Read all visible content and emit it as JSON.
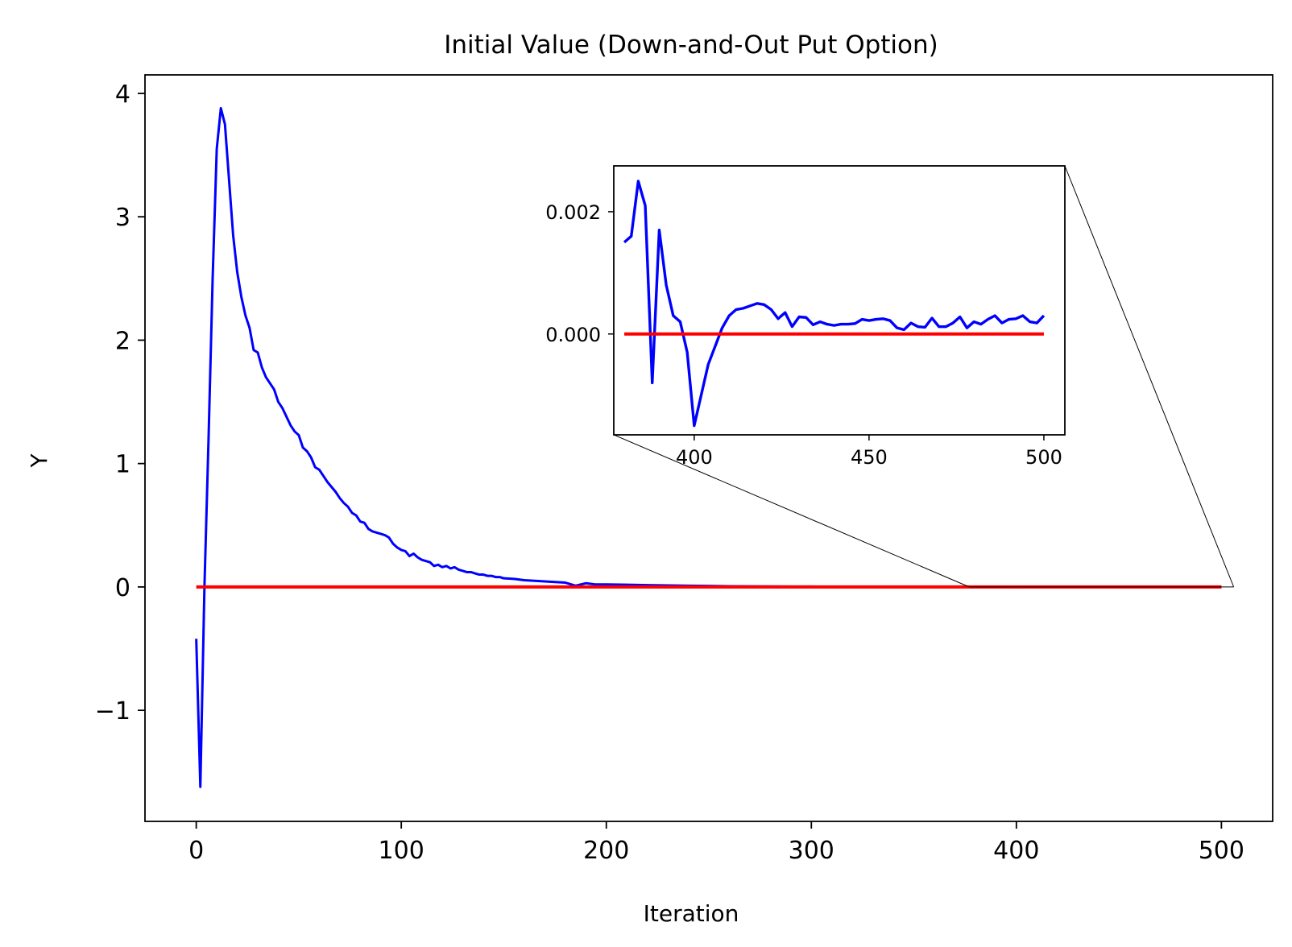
{
  "chart_data": {
    "type": "line",
    "title": "Initial Value (Down-and-Out Put Option)",
    "xlabel": "Iteration",
    "ylabel": "Y",
    "xlim": [
      -25,
      525
    ],
    "ylim": [
      -1.9,
      4.15
    ],
    "x_ticks": [
      0,
      100,
      200,
      300,
      400,
      500
    ],
    "x_tick_labels": [
      "0",
      "100",
      "200",
      "300",
      "400",
      "500"
    ],
    "y_ticks": [
      -1,
      0,
      1,
      2,
      3,
      4
    ],
    "y_tick_labels": [
      "−1",
      "0",
      "1",
      "2",
      "3",
      "4"
    ],
    "grid": false,
    "series": [
      {
        "color": "#0000ff",
        "x": [
          0,
          2,
          4,
          6,
          8,
          10,
          12,
          14,
          16,
          18,
          20,
          22,
          24,
          26,
          28,
          30,
          32,
          34,
          36,
          38,
          40,
          42,
          44,
          46,
          48,
          50,
          52,
          54,
          56,
          58,
          60,
          62,
          64,
          66,
          68,
          70,
          72,
          74,
          76,
          78,
          80,
          82,
          84,
          86,
          88,
          90,
          92,
          94,
          96,
          98,
          100,
          102,
          104,
          106,
          108,
          110,
          112,
          114,
          116,
          118,
          120,
          122,
          124,
          126,
          128,
          130,
          132,
          134,
          136,
          138,
          140,
          142,
          144,
          146,
          148,
          150,
          155,
          160,
          165,
          170,
          175,
          180,
          185,
          190,
          195,
          200,
          210,
          220,
          230,
          240,
          250,
          260,
          270,
          280,
          290,
          300,
          320,
          340,
          360,
          380,
          382,
          384,
          386,
          388,
          390,
          392,
          394,
          396,
          398,
          400,
          402,
          404,
          406,
          408,
          410,
          412,
          414,
          416,
          418,
          420,
          422,
          424,
          426,
          428,
          430,
          432,
          434,
          436,
          438,
          440,
          442,
          444,
          446,
          448,
          450,
          452,
          454,
          456,
          458,
          460,
          462,
          464,
          466,
          468,
          470,
          472,
          474,
          476,
          478,
          480,
          482,
          484,
          486,
          488,
          490,
          492,
          494,
          496,
          498,
          500
        ],
        "y": [
          -0.42,
          -1.62,
          0.0,
          1.2,
          2.5,
          3.55,
          3.88,
          3.75,
          3.3,
          2.85,
          2.55,
          2.35,
          2.2,
          2.1,
          1.92,
          1.9,
          1.78,
          1.7,
          1.65,
          1.6,
          1.5,
          1.45,
          1.38,
          1.31,
          1.26,
          1.23,
          1.13,
          1.1,
          1.05,
          0.97,
          0.95,
          0.9,
          0.85,
          0.81,
          0.77,
          0.72,
          0.68,
          0.65,
          0.6,
          0.58,
          0.53,
          0.52,
          0.47,
          0.45,
          0.44,
          0.43,
          0.42,
          0.4,
          0.35,
          0.32,
          0.3,
          0.29,
          0.25,
          0.27,
          0.24,
          0.22,
          0.21,
          0.2,
          0.17,
          0.18,
          0.16,
          0.17,
          0.15,
          0.16,
          0.14,
          0.13,
          0.12,
          0.12,
          0.11,
          0.1,
          0.1,
          0.09,
          0.09,
          0.08,
          0.08,
          0.07,
          0.065,
          0.055,
          0.05,
          0.045,
          0.04,
          0.035,
          0.01,
          0.03,
          0.02,
          0.02,
          0.018,
          0.015,
          0.012,
          0.01,
          0.008,
          0.006,
          0.005,
          0.004,
          0.003,
          0.003,
          0.002,
          0.001,
          0.0005,
          0.0015,
          0.0016,
          0.0025,
          0.0021,
          -0.0008,
          0.0017,
          0.0008,
          0.0003,
          0.0002,
          -0.0003,
          -0.0015,
          -0.001,
          -0.0005,
          -0.0002,
          0.0001,
          0.0003,
          0.0004,
          0.00042,
          0.00046,
          0.0005,
          0.00048,
          0.0004,
          0.00025,
          0.00035,
          0.00012,
          0.00028,
          0.00027,
          0.00015,
          0.0002,
          0.00016,
          0.00014,
          0.00016,
          0.00016,
          0.00017,
          0.00024,
          0.00022,
          0.00024,
          0.00025,
          0.00022,
          0.0001,
          7e-05,
          0.00018,
          0.00012,
          0.00011,
          0.00026,
          0.00012,
          0.00012,
          0.00018,
          0.00028,
          0.0001,
          0.0002,
          0.00016,
          0.00024,
          0.0003,
          0.00018,
          0.00024,
          0.00025,
          0.0003,
          0.0002,
          0.00018,
          0.0003
        ]
      },
      {
        "color": "#ff0000",
        "x": [
          0,
          500
        ],
        "y": [
          0,
          0
        ]
      }
    ],
    "inset": {
      "xlim": [
        377,
        506
      ],
      "ylim": [
        -0.00165,
        0.00275
      ],
      "x_ticks": [
        400,
        450,
        500
      ],
      "x_tick_labels": [
        "400",
        "450",
        "500"
      ],
      "y_ticks": [
        0.0,
        0.002
      ],
      "y_tick_labels": [
        "0.000",
        "0.002"
      ],
      "zoom_region_x": [
        377,
        506
      ]
    }
  }
}
